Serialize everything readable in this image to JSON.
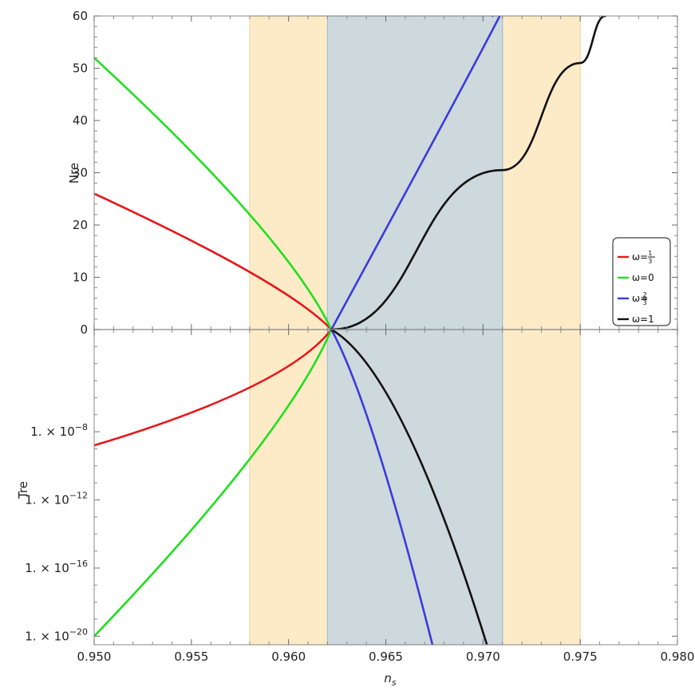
{
  "chart_data": [
    {
      "type": "line",
      "panel": "top",
      "xlabel": "",
      "ylabel": "Nre",
      "xlim": [
        0.95,
        0.98
      ],
      "ylim": [
        0,
        60
      ],
      "yticks": [
        0,
        10,
        20,
        30,
        40,
        50,
        60
      ],
      "y_tick_labels": [
        "0",
        "10",
        "20",
        "30",
        "40",
        "50",
        "60"
      ],
      "bands": [
        {
          "x0": 0.958,
          "x1": 0.975,
          "color": "#fdebc8"
        },
        {
          "x0": 0.962,
          "x1": 0.971,
          "color": "#cdd9dc",
          "edge": "#9ec0da"
        }
      ],
      "series": [
        {
          "name": "ω=-1/3",
          "color": "#e8161a",
          "x": [
            0.95,
            0.958,
            0.9622
          ],
          "y": [
            26,
            11,
            0
          ]
        },
        {
          "name": "ω=0",
          "color": "#1ee01e",
          "x": [
            0.95,
            0.958,
            0.9622
          ],
          "y": [
            52,
            22,
            0
          ]
        },
        {
          "name": "ω=2/3",
          "color": "#3b3bd9",
          "x": [
            0.9622,
            0.971,
            0.9705
          ],
          "y": [
            0,
            61,
            60
          ]
        },
        {
          "name": "ω=1",
          "color": "#111111",
          "x": [
            0.9622,
            0.971,
            0.975,
            0.9763
          ],
          "y": [
            0,
            30.5,
            51,
            60
          ]
        }
      ],
      "legend": {
        "placement": "right",
        "entries": [
          {
            "prefix": "ω=−",
            "frac_num": "1",
            "frac_den": "3",
            "color": "#e8161a"
          },
          {
            "prefix": "ω=0",
            "color": "#1ee01e"
          },
          {
            "prefix": "ω=",
            "frac_num": "2",
            "frac_den": "3",
            "color": "#3b3bd9"
          },
          {
            "prefix": "ω=1",
            "color": "#111111"
          }
        ]
      }
    },
    {
      "type": "line",
      "panel": "bottom",
      "xlabel": "n",
      "xlabel_sub": "s",
      "ylabel": "Tre",
      "xlim": [
        0.95,
        0.98
      ],
      "xticks": [
        0.95,
        0.955,
        0.96,
        0.965,
        0.97,
        0.975,
        0.98
      ],
      "x_tick_labels": [
        "0.950",
        "0.955",
        "0.960",
        "0.965",
        "0.970",
        "0.975",
        "0.980"
      ],
      "yscale": "log",
      "ylim_log10": [
        -20.5,
        -2
      ],
      "yticks_log10": [
        -8,
        -12,
        -16,
        -20
      ],
      "y_tick_labels": [
        {
          "mantissa": "1. × 10",
          "exp": "−8"
        },
        {
          "mantissa": "1. × 10",
          "exp": "−12"
        },
        {
          "mantissa": "1. × 10",
          "exp": "−16"
        },
        {
          "mantissa": "1. × 10",
          "exp": "−20"
        }
      ],
      "bands": [
        {
          "x0": 0.958,
          "x1": 0.975,
          "color": "#fdebc8"
        },
        {
          "x0": 0.962,
          "x1": 0.971,
          "color": "#cdd9dc",
          "edge": "#9ec0da"
        }
      ],
      "series": [
        {
          "name": "ω=-1/3",
          "color": "#e8161a",
          "x": [
            0.95,
            0.958,
            0.9622
          ],
          "log10y": [
            -8.8,
            -5.4,
            -2
          ]
        },
        {
          "name": "ω=0",
          "color": "#1ee01e",
          "x": [
            0.95,
            0.958,
            0.9622
          ],
          "log10y": [
            -20.0,
            -9.6,
            -2
          ]
        },
        {
          "name": "ω=2/3",
          "color": "#3b3bd9",
          "x": [
            0.9622,
            0.9645,
            0.9674
          ],
          "log10y": [
            -2,
            -8.7,
            -20.5
          ]
        },
        {
          "name": "ω=1",
          "color": "#111111",
          "x": [
            0.9622,
            0.966,
            0.9702
          ],
          "log10y": [
            -2,
            -7.8,
            -20.5
          ]
        }
      ]
    }
  ]
}
